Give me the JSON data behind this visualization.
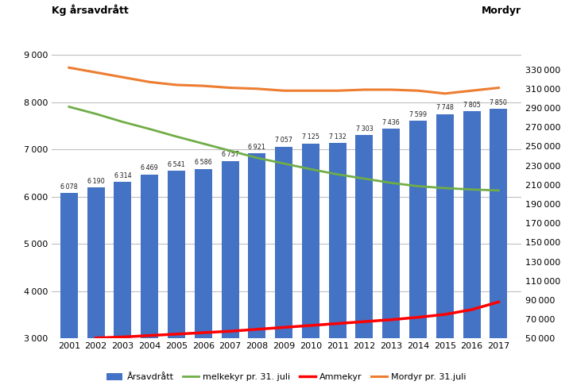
{
  "years": [
    2001,
    2002,
    2003,
    2004,
    2005,
    2006,
    2007,
    2008,
    2009,
    2010,
    2011,
    2012,
    2013,
    2014,
    2015,
    2016,
    2017
  ],
  "bars": [
    6078,
    6190,
    6314,
    6469,
    6541,
    6586,
    6757,
    6921,
    7057,
    7125,
    7132,
    7303,
    7436,
    7599,
    7748,
    7805,
    7850
  ],
  "melkekyr": [
    7900,
    7750,
    7580,
    7430,
    7270,
    7120,
    6970,
    6820,
    6700,
    6580,
    6470,
    6380,
    6290,
    6220,
    6180,
    6150,
    6130
  ],
  "ammekyr": [
    null,
    50500,
    51500,
    53000,
    54500,
    56000,
    57500,
    59500,
    61500,
    63500,
    65500,
    67500,
    69500,
    72000,
    75000,
    80000,
    88000
  ],
  "mordyr": [
    332000,
    327000,
    322000,
    317000,
    314000,
    313000,
    311000,
    310000,
    308000,
    308000,
    308000,
    309000,
    309000,
    308000,
    305000,
    308000,
    311000
  ],
  "bar_color": "#4472c4",
  "melkekyr_color": "#70ad47",
  "ammekyr_color": "#ff0000",
  "mordyr_color": "#ed7d31",
  "ylim_left": [
    3000,
    9500
  ],
  "ylim_right": [
    50000,
    370000
  ],
  "yticks_left": [
    3000,
    4000,
    5000,
    6000,
    7000,
    8000,
    9000
  ],
  "yticks_right": [
    50000,
    70000,
    90000,
    110000,
    130000,
    150000,
    170000,
    190000,
    210000,
    230000,
    250000,
    270000,
    290000,
    310000,
    330000
  ],
  "ylabel_left": "Kg årsavdrått",
  "ylabel_right": "Mordyr",
  "legend_labels": [
    "Årsavdrått",
    "melkekyr pr. 31. juli",
    "Ammekyr",
    "Mordyr pr. 31.juli"
  ],
  "background_color": "#ffffff",
  "grid_color": "#bfbfbf"
}
